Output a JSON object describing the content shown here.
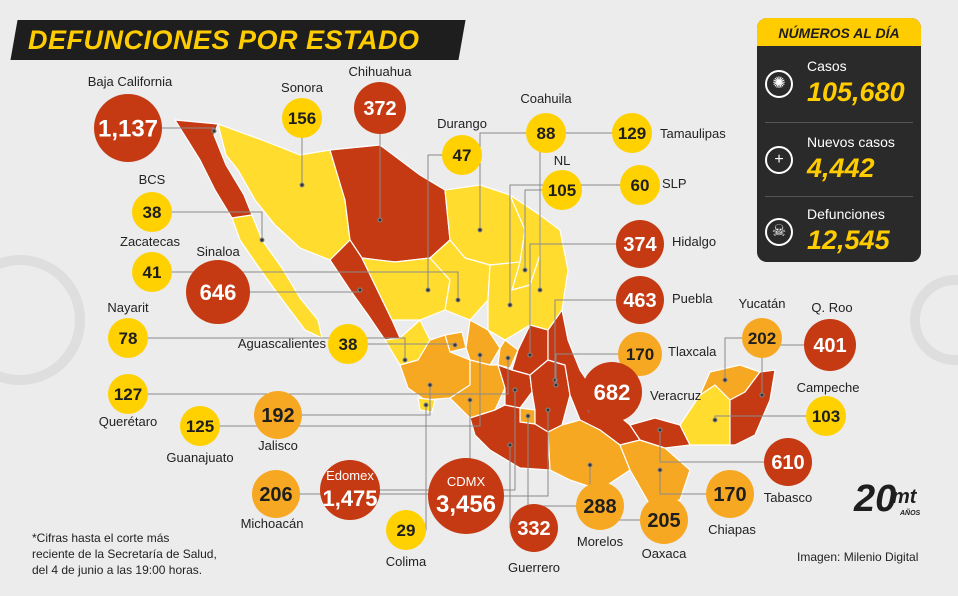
{
  "title": "DEFUNCIONES POR ESTADO",
  "summary": {
    "header": "NÚMEROS AL DÍA",
    "items": [
      {
        "label": "Casos",
        "value": "105,680",
        "icon": "virus-icon"
      },
      {
        "label": "Nuevos casos",
        "value": "4,442",
        "icon": "plus-icon"
      },
      {
        "label": "Defunciones",
        "value": "12,545",
        "icon": "skull-icon"
      }
    ]
  },
  "colors": {
    "high": "#c53a12",
    "mid": "#f7a823",
    "low": "#ffd100",
    "dark": "#1e1e1e",
    "light_state": "#ffdc2e"
  },
  "states": [
    {
      "name": "Baja California",
      "value": "1,137",
      "level": "high"
    },
    {
      "name": "Sonora",
      "value": "156",
      "level": "low"
    },
    {
      "name": "Chihuahua",
      "value": "372",
      "level": "high"
    },
    {
      "name": "Durango",
      "value": "47",
      "level": "low"
    },
    {
      "name": "Coahuila",
      "value": "88",
      "level": "low"
    },
    {
      "name": "Tamaulipas",
      "value": "129",
      "level": "low"
    },
    {
      "name": "NL",
      "value": "105",
      "level": "low"
    },
    {
      "name": "SLP",
      "value": "60",
      "level": "low"
    },
    {
      "name": "BCS",
      "value": "38",
      "level": "low"
    },
    {
      "name": "Hidalgo",
      "value": "374",
      "level": "high"
    },
    {
      "name": "Zacatecas",
      "value": "41",
      "level": "low"
    },
    {
      "name": "Sinaloa",
      "value": "646",
      "level": "high"
    },
    {
      "name": "Puebla",
      "value": "463",
      "level": "high"
    },
    {
      "name": "Nayarit",
      "value": "78",
      "level": "low"
    },
    {
      "name": "Aguascalientes",
      "value": "38",
      "level": "low"
    },
    {
      "name": "Yucatán",
      "value": "202",
      "level": "mid"
    },
    {
      "name": "Q. Roo",
      "value": "401",
      "level": "high"
    },
    {
      "name": "Tlaxcala",
      "value": "170",
      "level": "mid"
    },
    {
      "name": "Veracruz",
      "value": "682",
      "level": "high"
    },
    {
      "name": "Campeche",
      "value": "103",
      "level": "low"
    },
    {
      "name": "Querétaro",
      "value": "127",
      "level": "low"
    },
    {
      "name": "Guanajuato",
      "value": "125",
      "level": "low"
    },
    {
      "name": "Jalisco",
      "value": "192",
      "level": "mid"
    },
    {
      "name": "Tabasco",
      "value": "610",
      "level": "high"
    },
    {
      "name": "Michoacán",
      "value": "206",
      "level": "mid"
    },
    {
      "name": "Edomex",
      "value": "1,475",
      "level": "high"
    },
    {
      "name": "CDMX",
      "value": "3,456",
      "level": "high"
    },
    {
      "name": "Morelos",
      "value": "288",
      "level": "mid"
    },
    {
      "name": "Chiapas",
      "value": "170",
      "level": "mid"
    },
    {
      "name": "Colima",
      "value": "29",
      "level": "low"
    },
    {
      "name": "Guerrero",
      "value": "332",
      "level": "high"
    },
    {
      "name": "Oaxaca",
      "value": "205",
      "level": "mid"
    }
  ],
  "footnote": [
    "*Cifras hasta el corte más",
    "reciente de la Secretaría de Salud,",
    "del 4 de junio a las 19:00 horas."
  ],
  "credit": "Imagen: Milenio Digital",
  "logo": {
    "number": "20",
    "brand": "mt",
    "suffix": "AÑOS"
  }
}
